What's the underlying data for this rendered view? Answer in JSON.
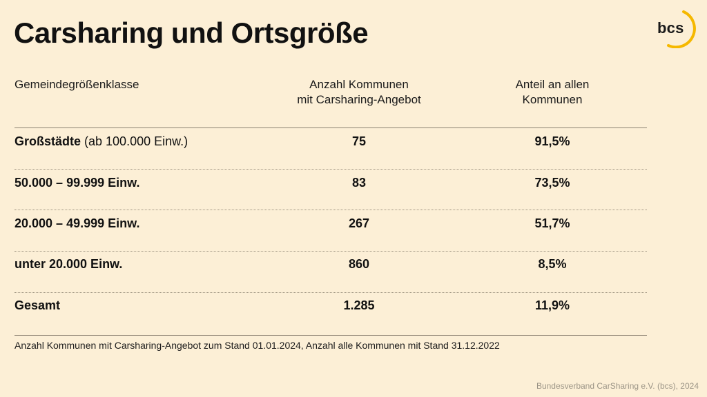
{
  "title": "Carsharing und Ortsgröße",
  "logo": {
    "text": "bcs",
    "accent_color": "#f5b800",
    "icon": "bcs-logo"
  },
  "table": {
    "headers": {
      "col1": "Gemeindegrößenklasse",
      "col2_line1": "Anzahl Kommunen",
      "col2_line2": "mit Carsharing-Angebot",
      "col3_line1": "Anteil an allen",
      "col3_line2": "Kommunen"
    },
    "rows": [
      {
        "label": "Großstädte",
        "sub": " (ab 100.000 Einw.)",
        "count": "75",
        "share": "91,5%"
      },
      {
        "label": "50.000 – 99.999 Einw.",
        "sub": "",
        "count": "83",
        "share": "73,5%"
      },
      {
        "label": "20.000 – 49.999 Einw.",
        "sub": "",
        "count": "267",
        "share": "51,7%"
      },
      {
        "label": "unter 20.000 Einw.",
        "sub": "",
        "count": "860",
        "share": "8,5%"
      },
      {
        "label": "Gesamt",
        "sub": "",
        "count": "1.285",
        "share": "11,9%"
      }
    ]
  },
  "footnote": "Anzahl Kommunen mit Carsharing-Angebot zum Stand 01.01.2024, Anzahl alle Kommunen mit Stand 31.12.2022",
  "source": "Bundesverband CarSharing e.V. (bcs), 2024"
}
